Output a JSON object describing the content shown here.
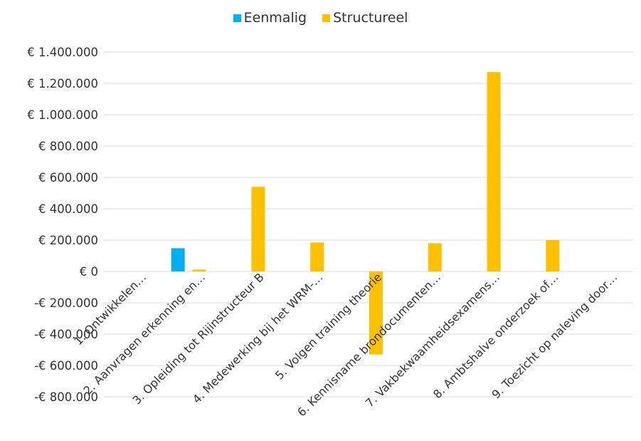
{
  "chart_data": {
    "type": "bar",
    "title": "",
    "xlabel": "",
    "ylabel": "",
    "categories": [
      "1. Ontwikkelen…",
      "2. Aanvragen erkenning en…",
      "3. Opleiding tot Rijinstructeur B",
      "4. Medewerking bij het WRM-…",
      "5. Volgen training theorie",
      "6. Kennisname brondocumenten…",
      "7. Vakbekwaamheidsexamens…",
      "8. Ambtshalve onderzoek of…",
      "9. Toezicht op naleving door…"
    ],
    "series": [
      {
        "name": "Eenmalig",
        "color": "#00b0f0",
        "values": [
          0,
          148000,
          0,
          0,
          0,
          0,
          0,
          0,
          0
        ]
      },
      {
        "name": "Structureel",
        "color": "#ffc000",
        "values": [
          0,
          12000,
          540000,
          185000,
          -530000,
          180000,
          1272000,
          200000,
          0
        ]
      }
    ],
    "ylim": [
      -800000,
      1400000
    ],
    "yticks": [
      1400000,
      1200000,
      1000000,
      800000,
      600000,
      400000,
      200000,
      0,
      -200000,
      -400000,
      -600000,
      -800000
    ],
    "ytick_labels": [
      "€ 1.400.000",
      "€ 1.200.000",
      "€ 1.000.000",
      "€ 800.000",
      "€ 600.000",
      "€ 400.000",
      "€ 200.000",
      "€ 0",
      "-€ 200.000",
      "-€ 400.000",
      "-€ 600.000",
      "-€ 800.000"
    ],
    "grid": true,
    "legend": "top-center"
  }
}
